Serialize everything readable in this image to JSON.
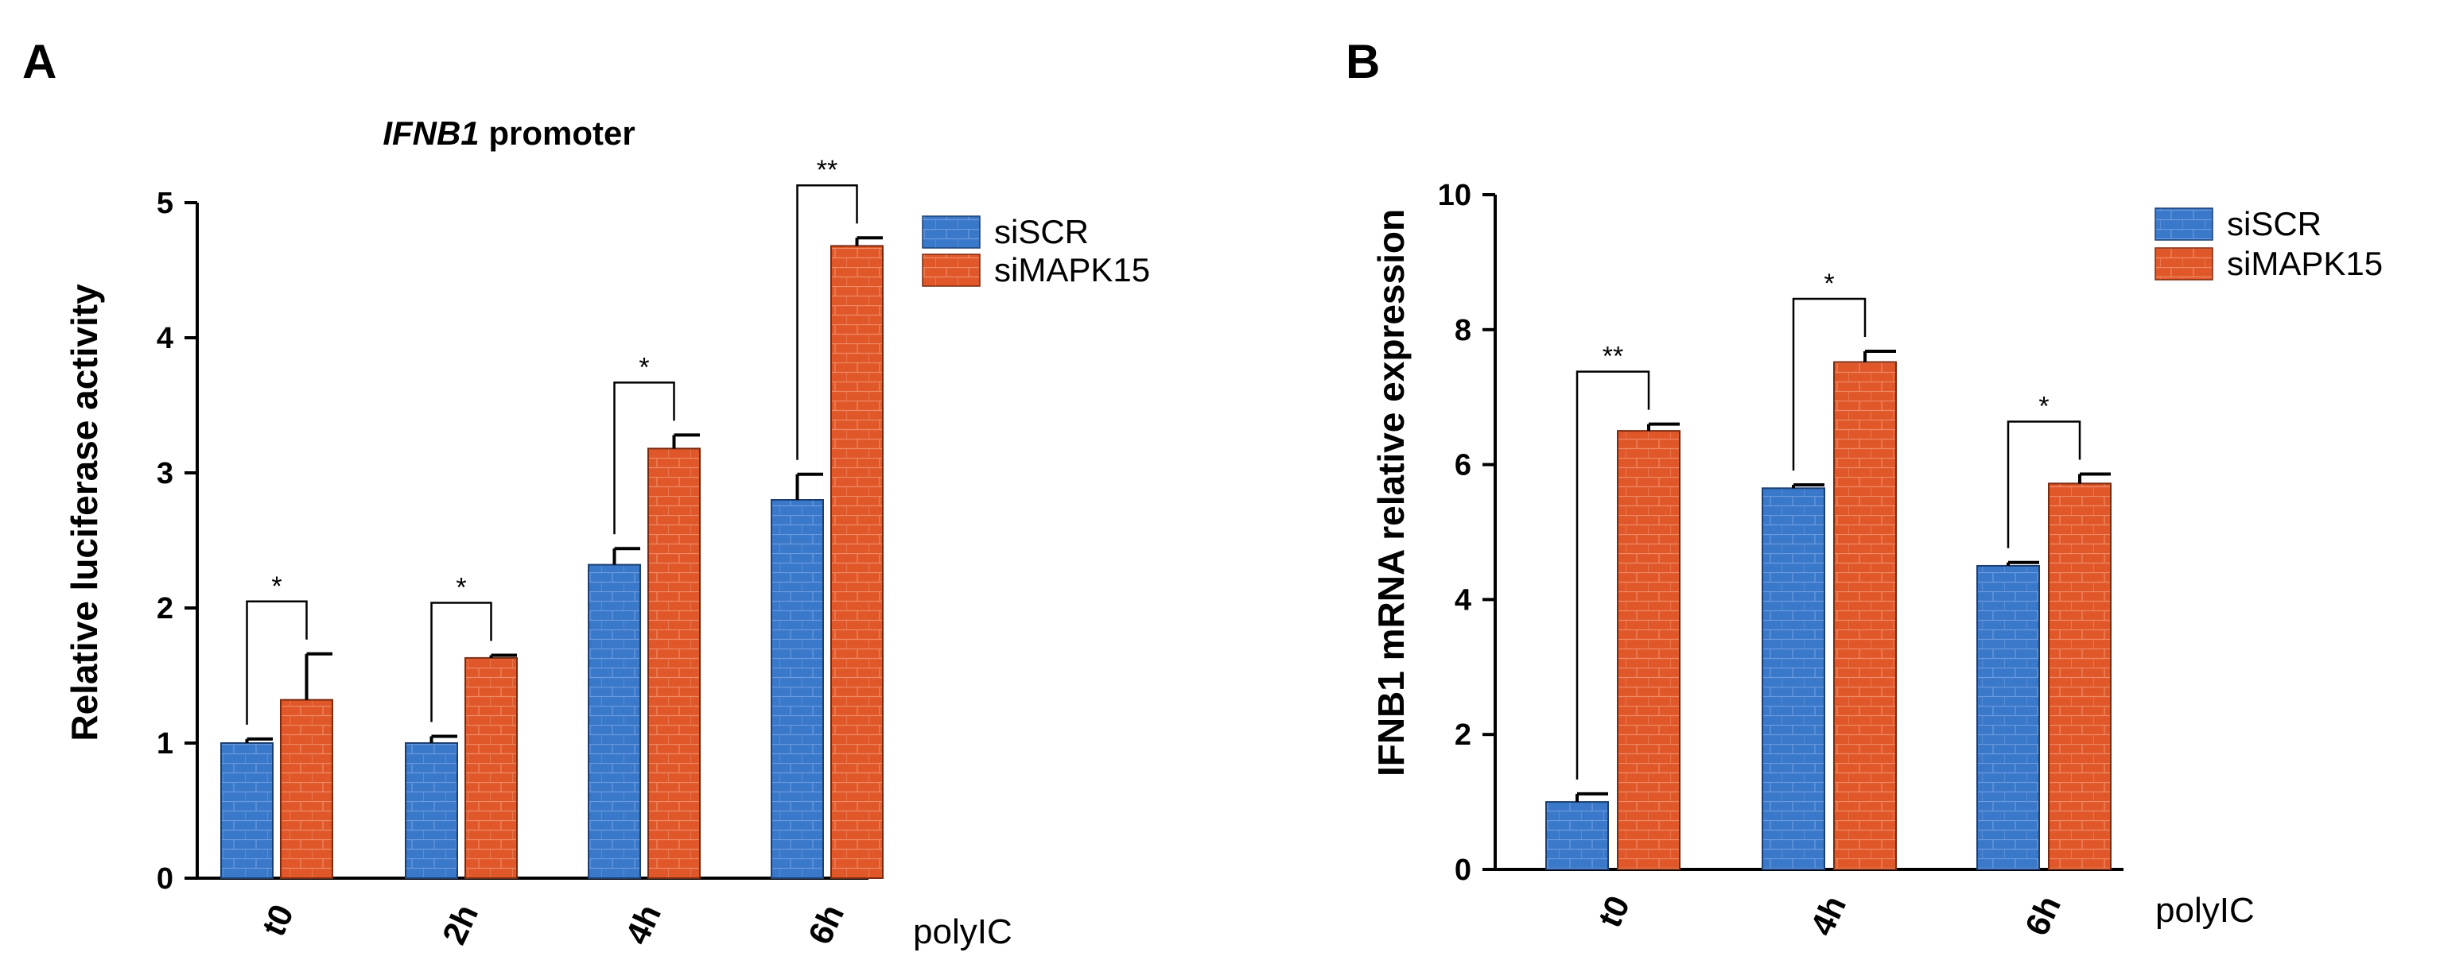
{
  "colors": {
    "siSCR": "#3a78c9",
    "siMAPK15": "#e0582a",
    "axis": "#000000"
  },
  "chart_data": [
    {
      "panel": "A",
      "type": "bar",
      "title_italic": "IFNB1",
      "title_rest": " promoter",
      "xlabel": "polyIC",
      "ylabel": "Relative luciferase activity",
      "ylim": [
        0,
        5
      ],
      "yticks": [
        0,
        1,
        2,
        3,
        4,
        5
      ],
      "categories": [
        "t0",
        "2h",
        "4h",
        "6h"
      ],
      "series": [
        {
          "name": "siSCR",
          "color_key": "siSCR",
          "values": [
            1.0,
            1.0,
            2.32,
            2.8
          ],
          "errors": [
            0.03,
            0.05,
            0.12,
            0.19
          ]
        },
        {
          "name": "siMAPK15",
          "color_key": "siMAPK15",
          "values": [
            1.32,
            1.63,
            3.18,
            4.68
          ],
          "errors": [
            0.34,
            0.02,
            0.1,
            0.06
          ]
        }
      ],
      "significance": [
        "*",
        "*",
        "*",
        "**"
      ],
      "legend": [
        "siSCR",
        "siMAPK15"
      ],
      "legend_position": "top-right"
    },
    {
      "panel": "B",
      "type": "bar",
      "xlabel": "polyIC",
      "ylabel": "IFNB1 mRNA relative expression",
      "ylim": [
        0,
        10
      ],
      "yticks": [
        0,
        2,
        4,
        6,
        8,
        10
      ],
      "categories": [
        "t0",
        "4h",
        "6h"
      ],
      "series": [
        {
          "name": "siSCR",
          "color_key": "siSCR",
          "values": [
            1.0,
            5.65,
            4.5
          ],
          "errors": [
            0.12,
            0.05,
            0.05
          ]
        },
        {
          "name": "siMAPK15",
          "color_key": "siMAPK15",
          "values": [
            6.5,
            7.52,
            5.72
          ],
          "errors": [
            0.1,
            0.16,
            0.14
          ]
        }
      ],
      "significance": [
        "**",
        "*",
        "*"
      ],
      "legend": [
        "siSCR",
        "siMAPK15"
      ],
      "legend_position": "top-right"
    }
  ]
}
